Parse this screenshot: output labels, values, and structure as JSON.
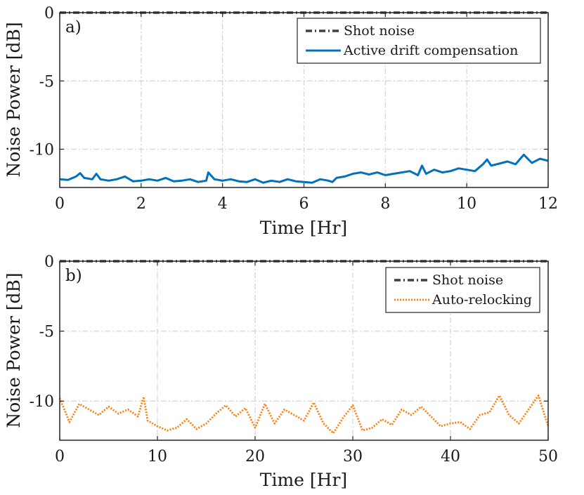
{
  "chart_data": [
    {
      "type": "line",
      "panel_label": "a)",
      "xlabel": "Time [Hr]",
      "ylabel": "Noise Power [dB]",
      "xlim": [
        0,
        12
      ],
      "ylim": [
        -12.8,
        0
      ],
      "x_ticks": [
        0,
        2,
        4,
        6,
        8,
        10,
        12
      ],
      "y_ticks": [
        0,
        -5,
        -10
      ],
      "y_tick_labels": [
        "0",
        "-5",
        "-10"
      ],
      "grid": true,
      "legend_position": "top-right",
      "series": [
        {
          "name": "Shot noise",
          "style": "dash-dot",
          "color": "#404040",
          "x": [
            0,
            12
          ],
          "y": [
            0,
            0
          ]
        },
        {
          "name": "Active drift compensation",
          "style": "solid",
          "color": "#0072BD",
          "x": [
            0.0,
            0.2,
            0.4,
            0.5,
            0.6,
            0.8,
            0.9,
            1.0,
            1.2,
            1.4,
            1.6,
            1.8,
            2.0,
            2.2,
            2.4,
            2.6,
            2.8,
            3.0,
            3.2,
            3.4,
            3.6,
            3.65,
            3.8,
            4.0,
            4.2,
            4.4,
            4.6,
            4.8,
            5.0,
            5.2,
            5.4,
            5.6,
            5.8,
            6.0,
            6.2,
            6.4,
            6.6,
            6.7,
            6.8,
            7.0,
            7.2,
            7.4,
            7.6,
            7.8,
            8.0,
            8.2,
            8.4,
            8.6,
            8.8,
            8.9,
            9.0,
            9.2,
            9.4,
            9.6,
            9.8,
            10.0,
            10.2,
            10.4,
            10.5,
            10.6,
            10.8,
            11.0,
            11.2,
            11.4,
            11.6,
            11.8,
            12.0
          ],
          "y": [
            -12.2,
            -12.25,
            -12.0,
            -11.75,
            -12.1,
            -12.2,
            -11.8,
            -12.2,
            -12.3,
            -12.2,
            -12.0,
            -12.35,
            -12.3,
            -12.2,
            -12.3,
            -12.1,
            -12.35,
            -12.3,
            -12.2,
            -12.4,
            -12.3,
            -11.7,
            -12.2,
            -12.3,
            -12.2,
            -12.35,
            -12.4,
            -12.2,
            -12.45,
            -12.3,
            -12.4,
            -12.2,
            -12.35,
            -12.4,
            -12.45,
            -12.2,
            -12.3,
            -12.4,
            -12.1,
            -12.0,
            -11.8,
            -11.7,
            -11.85,
            -11.7,
            -11.9,
            -11.8,
            -11.7,
            -11.6,
            -11.9,
            -11.2,
            -11.8,
            -11.5,
            -11.7,
            -11.6,
            -11.4,
            -11.5,
            -11.6,
            -11.1,
            -10.75,
            -11.2,
            -11.05,
            -10.9,
            -11.1,
            -10.4,
            -11.0,
            -10.7,
            -10.85
          ]
        }
      ]
    },
    {
      "type": "line",
      "panel_label": "b)",
      "xlabel": "Time [Hr]",
      "ylabel": "Noise Power [dB]",
      "xlim": [
        0,
        50
      ],
      "ylim": [
        -12.8,
        0
      ],
      "x_ticks": [
        0,
        10,
        20,
        30,
        40,
        50
      ],
      "y_ticks": [
        0,
        -5,
        -10
      ],
      "y_tick_labels": [
        "0",
        "-5",
        "-10"
      ],
      "grid": true,
      "legend_position": "top-right",
      "series": [
        {
          "name": "Shot noise",
          "style": "dash-dot",
          "color": "#404040",
          "x": [
            0,
            50
          ],
          "y": [
            0,
            0
          ]
        },
        {
          "name": "Auto-relocking",
          "style": "dotted",
          "color": "#FF7F0E",
          "x": [
            0,
            1,
            2,
            3,
            4,
            5,
            6,
            7,
            8,
            8.6,
            9,
            10,
            11,
            12,
            13,
            14,
            15,
            16,
            17,
            18,
            19,
            20,
            21,
            22,
            23,
            24,
            25,
            26,
            27,
            28,
            29,
            30,
            31,
            32,
            33,
            34,
            35,
            36,
            37,
            38,
            39,
            40,
            41,
            42,
            43,
            44,
            45,
            46,
            47,
            48,
            49,
            50
          ],
          "y": [
            -9.8,
            -11.5,
            -10.2,
            -10.6,
            -11.0,
            -10.4,
            -10.9,
            -10.6,
            -11.1,
            -9.7,
            -11.4,
            -11.8,
            -12.1,
            -11.9,
            -11.3,
            -12.0,
            -11.6,
            -10.9,
            -10.3,
            -11.1,
            -10.5,
            -11.9,
            -10.2,
            -11.6,
            -10.6,
            -11.0,
            -11.4,
            -10.1,
            -11.6,
            -12.3,
            -11.2,
            -10.3,
            -12.1,
            -11.9,
            -11.3,
            -11.7,
            -10.6,
            -11.0,
            -10.4,
            -11.1,
            -11.8,
            -11.6,
            -11.5,
            -12.0,
            -11.0,
            -10.8,
            -9.6,
            -11.0,
            -11.6,
            -10.6,
            -9.6,
            -11.8
          ]
        }
      ]
    }
  ]
}
